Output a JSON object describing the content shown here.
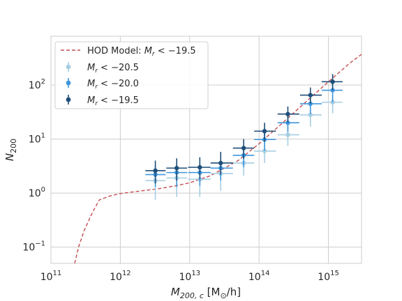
{
  "chart_data": {
    "type": "scatter",
    "title": "",
    "xlabel_main": "M",
    "xlabel_sub": "200, c",
    "xlabel_units": " [M",
    "xlabel_units_sub": "⊙",
    "xlabel_units_tail": "/h]",
    "ylabel_main": "N",
    "ylabel_sub": "200",
    "x_scale": "log",
    "y_scale": "log",
    "xlim": [
      100000000000.0,
      3000000000000000.0
    ],
    "ylim": [
      0.05,
      800
    ],
    "x_ticks": [
      100000000000.0,
      1000000000000.0,
      10000000000000.0,
      100000000000000.0,
      1000000000000000.0
    ],
    "x_tick_exponents": [
      "11",
      "12",
      "13",
      "14",
      "15"
    ],
    "y_ticks": [
      0.1,
      1,
      10,
      100
    ],
    "y_tick_exponents": [
      "−1",
      "0",
      "1",
      "2"
    ],
    "tick_base": "10",
    "grid": true,
    "legend_position": "top-left",
    "model": {
      "name": "HOD Model: Mr < −19.5",
      "legend_main": "HOD Model: ",
      "legend_var": "M",
      "legend_sub": "r",
      "legend_tail": " < −19.5",
      "color": "#c44e52",
      "x": [
        220000000000.0,
        250000000000.0,
        300000000000.0,
        400000000000.0,
        500000000000.0,
        700000000000.0,
        1000000000000.0,
        2000000000000.0,
        3500000000000.0,
        6000000000000.0,
        10000000000000.0,
        20000000000000.0,
        50000000000000.0,
        100000000000000.0,
        200000000000000.0,
        500000000000000.0,
        1000000000000000.0,
        2000000000000000.0,
        3000000000000000.0
      ],
      "y": [
        0.05,
        0.1,
        0.2,
        0.45,
        0.75,
        0.88,
        0.98,
        1.1,
        1.2,
        1.35,
        1.55,
        2.1,
        4.0,
        8.2,
        18,
        52,
        115,
        250,
        370
      ]
    },
    "series": [
      {
        "name": "Mr < −20.5",
        "legend_var": "M",
        "legend_sub": "r",
        "legend_tail": " < −20.5",
        "color": "#a6cee3",
        "x": [
          3200000000000.0,
          6500000000000.0,
          14000000000000.0,
          28000000000000.0,
          60000000000000.0,
          120000000000000.0,
          260000000000000.0,
          550000000000000.0,
          1150000000000000.0
        ],
        "y": [
          1.7,
          1.9,
          1.8,
          2.3,
          3.6,
          6.0,
          12,
          28,
          48
        ],
        "yerr_low": [
          0.75,
          0.85,
          0.85,
          1.1,
          2.1,
          3.6,
          7.5,
          17,
          30
        ],
        "yerr_high": [
          2.6,
          2.9,
          2.6,
          3.6,
          5.7,
          9.5,
          18,
          42,
          65
        ],
        "xerr_low": [
          2300000000000.0,
          4600000000000.0,
          9500000000000.0,
          20000000000000.0,
          42000000000000.0,
          85000000000000.0,
          185000000000000.0,
          390000000000000.0,
          800000000000000.0
        ],
        "xerr_high": [
          4500000000000.0,
          9200000000000.0,
          20000000000000.0,
          42000000000000.0,
          85000000000000.0,
          175000000000000.0,
          380000000000000.0,
          800000000000000.0,
          1600000000000000.0
        ]
      },
      {
        "name": "Mr < −20.0",
        "legend_var": "M",
        "legend_sub": "r",
        "legend_tail": " < −20.0",
        "color": "#3e96dd",
        "x": [
          3200000000000.0,
          6500000000000.0,
          14000000000000.0,
          28000000000000.0,
          60000000000000.0,
          120000000000000.0,
          260000000000000.0,
          550000000000000.0,
          1150000000000000.0
        ],
        "y": [
          2.2,
          2.4,
          2.4,
          2.9,
          5.0,
          9.8,
          20,
          45,
          80
        ],
        "yerr_low": [
          1.3,
          1.3,
          1.35,
          1.7,
          3.0,
          6.1,
          13.5,
          29,
          48
        ],
        "yerr_high": [
          3.2,
          3.4,
          3.3,
          4.2,
          7.0,
          13.5,
          27,
          62,
          110
        ],
        "xerr_low": [
          2300000000000.0,
          4600000000000.0,
          9500000000000.0,
          20000000000000.0,
          42000000000000.0,
          85000000000000.0,
          185000000000000.0,
          390000000000000.0,
          800000000000000.0
        ],
        "xerr_high": [
          4500000000000.0,
          9200000000000.0,
          20000000000000.0,
          42000000000000.0,
          85000000000000.0,
          175000000000000.0,
          380000000000000.0,
          800000000000000.0,
          1600000000000000.0
        ]
      },
      {
        "name": "Mr < −19.5",
        "legend_var": "M",
        "legend_sub": "r",
        "legend_tail": " < −19.5",
        "color": "#1f4e79",
        "x": [
          3200000000000.0,
          6500000000000.0,
          14000000000000.0,
          28000000000000.0,
          60000000000000.0,
          120000000000000.0,
          260000000000000.0,
          550000000000000.0,
          1150000000000000.0
        ],
        "y": [
          2.6,
          2.9,
          3.0,
          3.6,
          6.8,
          14,
          29,
          65,
          115
        ],
        "yerr_low": [
          1.5,
          1.7,
          1.8,
          2.2,
          4.3,
          9.0,
          20,
          45,
          80
        ],
        "yerr_high": [
          4.0,
          4.4,
          4.6,
          5.8,
          10,
          20,
          40,
          90,
          160
        ],
        "xerr_low": [
          2300000000000.0,
          4600000000000.0,
          9500000000000.0,
          20000000000000.0,
          42000000000000.0,
          85000000000000.0,
          185000000000000.0,
          390000000000000.0,
          800000000000000.0
        ],
        "xerr_high": [
          4500000000000.0,
          9200000000000.0,
          20000000000000.0,
          42000000000000.0,
          85000000000000.0,
          175000000000000.0,
          380000000000000.0,
          800000000000000.0,
          1600000000000000.0
        ]
      }
    ]
  }
}
